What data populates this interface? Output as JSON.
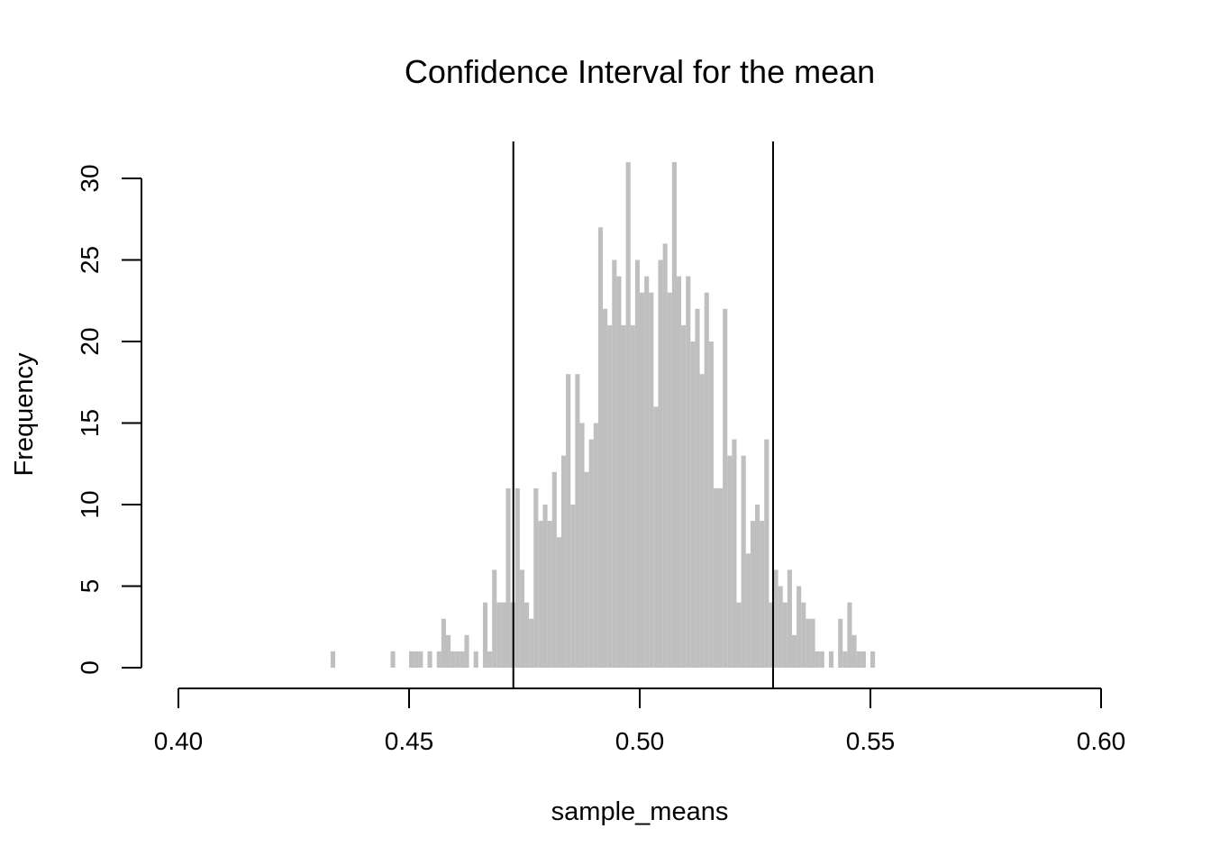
{
  "chart_data": {
    "type": "bar",
    "title": "Confidence Interval for the mean",
    "xlabel": "sample_means",
    "ylabel": "Frequency",
    "xlim": [
      0.4,
      0.6
    ],
    "ylim": [
      0,
      30
    ],
    "x_ticks": [
      "0.40",
      "0.45",
      "0.50",
      "0.55",
      "0.60"
    ],
    "y_ticks": [
      "0",
      "5",
      "10",
      "15",
      "20",
      "25",
      "30"
    ],
    "bin_width": 0.001,
    "bar_color": "#bfbfbf",
    "ci_lines": [
      0.4726,
      0.5289
    ],
    "bins": [
      [
        0.433,
        1
      ],
      [
        0.446,
        1
      ],
      [
        0.45,
        1
      ],
      [
        0.451,
        1
      ],
      [
        0.452,
        1
      ],
      [
        0.454,
        1
      ],
      [
        0.456,
        1
      ],
      [
        0.457,
        3
      ],
      [
        0.458,
        2
      ],
      [
        0.459,
        1
      ],
      [
        0.46,
        1
      ],
      [
        0.461,
        1
      ],
      [
        0.462,
        2
      ],
      [
        0.464,
        1
      ],
      [
        0.466,
        4
      ],
      [
        0.467,
        1
      ],
      [
        0.468,
        6
      ],
      [
        0.469,
        4
      ],
      [
        0.47,
        4
      ],
      [
        0.471,
        11
      ],
      [
        0.472,
        4
      ],
      [
        0.473,
        11
      ],
      [
        0.474,
        6
      ],
      [
        0.475,
        4
      ],
      [
        0.476,
        3
      ],
      [
        0.477,
        11
      ],
      [
        0.478,
        9
      ],
      [
        0.479,
        10
      ],
      [
        0.48,
        9
      ],
      [
        0.481,
        12
      ],
      [
        0.482,
        8
      ],
      [
        0.483,
        13
      ],
      [
        0.484,
        18
      ],
      [
        0.485,
        10
      ],
      [
        0.486,
        18
      ],
      [
        0.487,
        15
      ],
      [
        0.488,
        12
      ],
      [
        0.489,
        14
      ],
      [
        0.49,
        15
      ],
      [
        0.491,
        27
      ],
      [
        0.492,
        22
      ],
      [
        0.493,
        21
      ],
      [
        0.494,
        25
      ],
      [
        0.495,
        24
      ],
      [
        0.496,
        21
      ],
      [
        0.497,
        31
      ],
      [
        0.498,
        21
      ],
      [
        0.499,
        25
      ],
      [
        0.5,
        23
      ],
      [
        0.501,
        24
      ],
      [
        0.502,
        23
      ],
      [
        0.503,
        16
      ],
      [
        0.504,
        25
      ],
      [
        0.505,
        26
      ],
      [
        0.506,
        23
      ],
      [
        0.507,
        31
      ],
      [
        0.508,
        24
      ],
      [
        0.509,
        21
      ],
      [
        0.51,
        24
      ],
      [
        0.511,
        20
      ],
      [
        0.512,
        22
      ],
      [
        0.513,
        18
      ],
      [
        0.514,
        23
      ],
      [
        0.515,
        20
      ],
      [
        0.516,
        11
      ],
      [
        0.517,
        11
      ],
      [
        0.518,
        22
      ],
      [
        0.519,
        13
      ],
      [
        0.52,
        14
      ],
      [
        0.521,
        4
      ],
      [
        0.522,
        13
      ],
      [
        0.523,
        7
      ],
      [
        0.524,
        9
      ],
      [
        0.525,
        10
      ],
      [
        0.526,
        9
      ],
      [
        0.527,
        14
      ],
      [
        0.528,
        4
      ],
      [
        0.529,
        6
      ],
      [
        0.53,
        5
      ],
      [
        0.531,
        4
      ],
      [
        0.532,
        6
      ],
      [
        0.533,
        2
      ],
      [
        0.534,
        5
      ],
      [
        0.535,
        4
      ],
      [
        0.536,
        3
      ],
      [
        0.537,
        3
      ],
      [
        0.538,
        1
      ],
      [
        0.539,
        1
      ],
      [
        0.541,
        1
      ],
      [
        0.543,
        3
      ],
      [
        0.544,
        1
      ],
      [
        0.545,
        4
      ],
      [
        0.546,
        2
      ],
      [
        0.547,
        1
      ],
      [
        0.548,
        1
      ],
      [
        0.55,
        1
      ]
    ]
  }
}
